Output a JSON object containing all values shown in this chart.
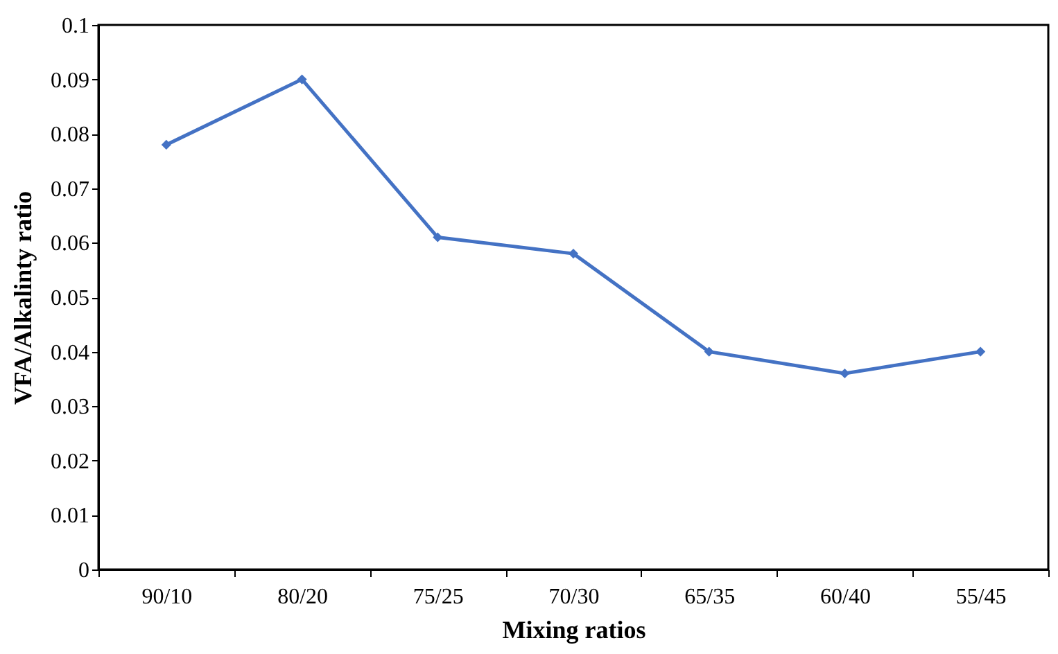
{
  "chart_data": {
    "type": "line",
    "xlabel": "Mixing ratios",
    "ylabel": "VFA/Alkalinty ratio",
    "categories": [
      "90/10",
      "80/20",
      "75/25",
      "70/30",
      "65/35",
      "60/40",
      "55/45"
    ],
    "series": [
      {
        "color": "#4472c4",
        "values": [
          0.078,
          0.09,
          0.061,
          0.058,
          0.04,
          0.036,
          0.04
        ]
      }
    ],
    "ylim": [
      0,
      0.1
    ],
    "yticks": [
      0,
      0.01,
      0.02,
      0.03,
      0.04,
      0.05,
      0.06,
      0.07,
      0.08,
      0.09,
      0.1
    ],
    "marker": "diamond",
    "line_style": "solid",
    "grid": false,
    "legend": false
  }
}
